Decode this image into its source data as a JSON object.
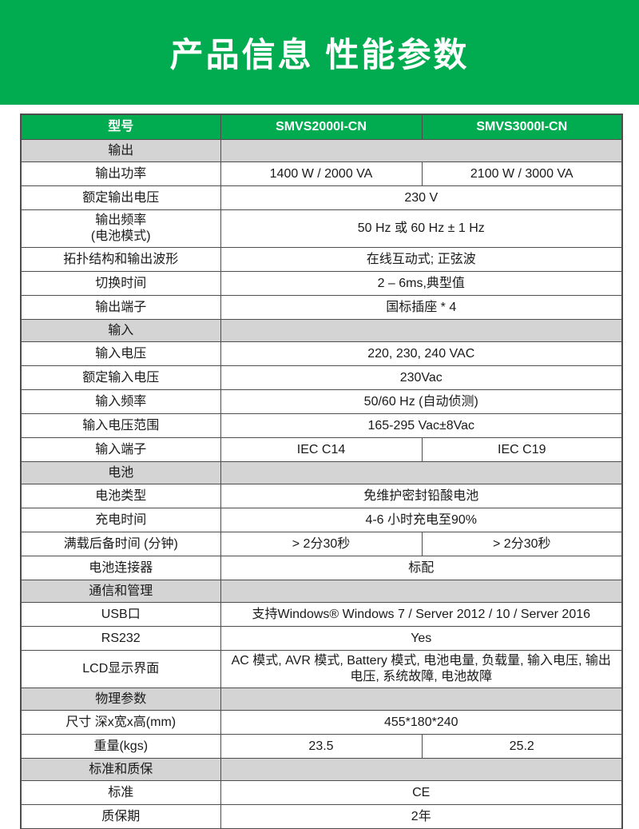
{
  "banner": {
    "title": "产品信息 性能参数",
    "bg_color": "#00ac4f",
    "text_color": "#ffffff"
  },
  "table": {
    "colors": {
      "header_bg": "#00ac4f",
      "header_text": "#ffffff",
      "section_bg": "#d4d4d4",
      "border": "#4d4d4d",
      "body_text": "#1a1a1a"
    },
    "header": {
      "label": "型号",
      "values": [
        "SMVS2000I-CN",
        "SMVS3000I-CN"
      ]
    },
    "rows": [
      {
        "type": "section",
        "label": "输出"
      },
      {
        "type": "split",
        "label": "输出功率",
        "values": [
          "1400 W / 2000 VA",
          "2100 W / 3000 VA"
        ]
      },
      {
        "type": "span",
        "label": "额定输出电压",
        "value": "230 V"
      },
      {
        "type": "span",
        "label": "输出频率\n(电池模式)",
        "value": "50 Hz 或 60 Hz ± 1 Hz",
        "tall": true
      },
      {
        "type": "span",
        "label": "拓扑结构和输出波形",
        "value": "在线互动式; 正弦波"
      },
      {
        "type": "span",
        "label": "切换时间",
        "value": "2 – 6ms,典型值"
      },
      {
        "type": "span",
        "label": "输出端子",
        "value": "国标插座 * 4"
      },
      {
        "type": "section",
        "label": "输入"
      },
      {
        "type": "span",
        "label": "输入电压",
        "value": "220, 230, 240 VAC"
      },
      {
        "type": "span",
        "label": "额定输入电压",
        "value": "230Vac"
      },
      {
        "type": "span",
        "label": "输入频率",
        "value": "50/60 Hz (自动侦测)"
      },
      {
        "type": "span",
        "label": "输入电压范围",
        "value": "165-295 Vac±8Vac"
      },
      {
        "type": "split",
        "label": "输入端子",
        "values": [
          "IEC C14",
          "IEC C19"
        ]
      },
      {
        "type": "section",
        "label": "电池"
      },
      {
        "type": "span",
        "label": "电池类型",
        "value": "免维护密封铅酸电池"
      },
      {
        "type": "span",
        "label": "充电时间",
        "value": "4-6 小时充电至90%"
      },
      {
        "type": "split",
        "label": "满载后备时间 (分钟)",
        "values": [
          "> 2分30秒",
          "> 2分30秒"
        ]
      },
      {
        "type": "span",
        "label": "电池连接器",
        "value": "标配"
      },
      {
        "type": "section",
        "label": "通信和管理"
      },
      {
        "type": "span",
        "label": "USB口",
        "value": "支持Windows® Windows 7 / Server 2012 / 10 / Server 2016"
      },
      {
        "type": "span",
        "label": "RS232",
        "value": "Yes"
      },
      {
        "type": "span",
        "label": "LCD显示界面",
        "value": "AC 模式, AVR 模式, Battery 模式, 电池电量, 负载量, 输入电压, 输出电压, 系统故障, 电池故障",
        "tall": true
      },
      {
        "type": "section",
        "label": "物理参数"
      },
      {
        "type": "span",
        "label": "尺寸 深x宽x高(mm)",
        "value": "455*180*240"
      },
      {
        "type": "split",
        "label": "重量(kgs)",
        "values": [
          "23.5",
          "25.2"
        ]
      },
      {
        "type": "section",
        "label": "标准和质保"
      },
      {
        "type": "span",
        "label": "标准",
        "value": "CE"
      },
      {
        "type": "span",
        "label": "质保期",
        "value": "2年"
      }
    ]
  }
}
